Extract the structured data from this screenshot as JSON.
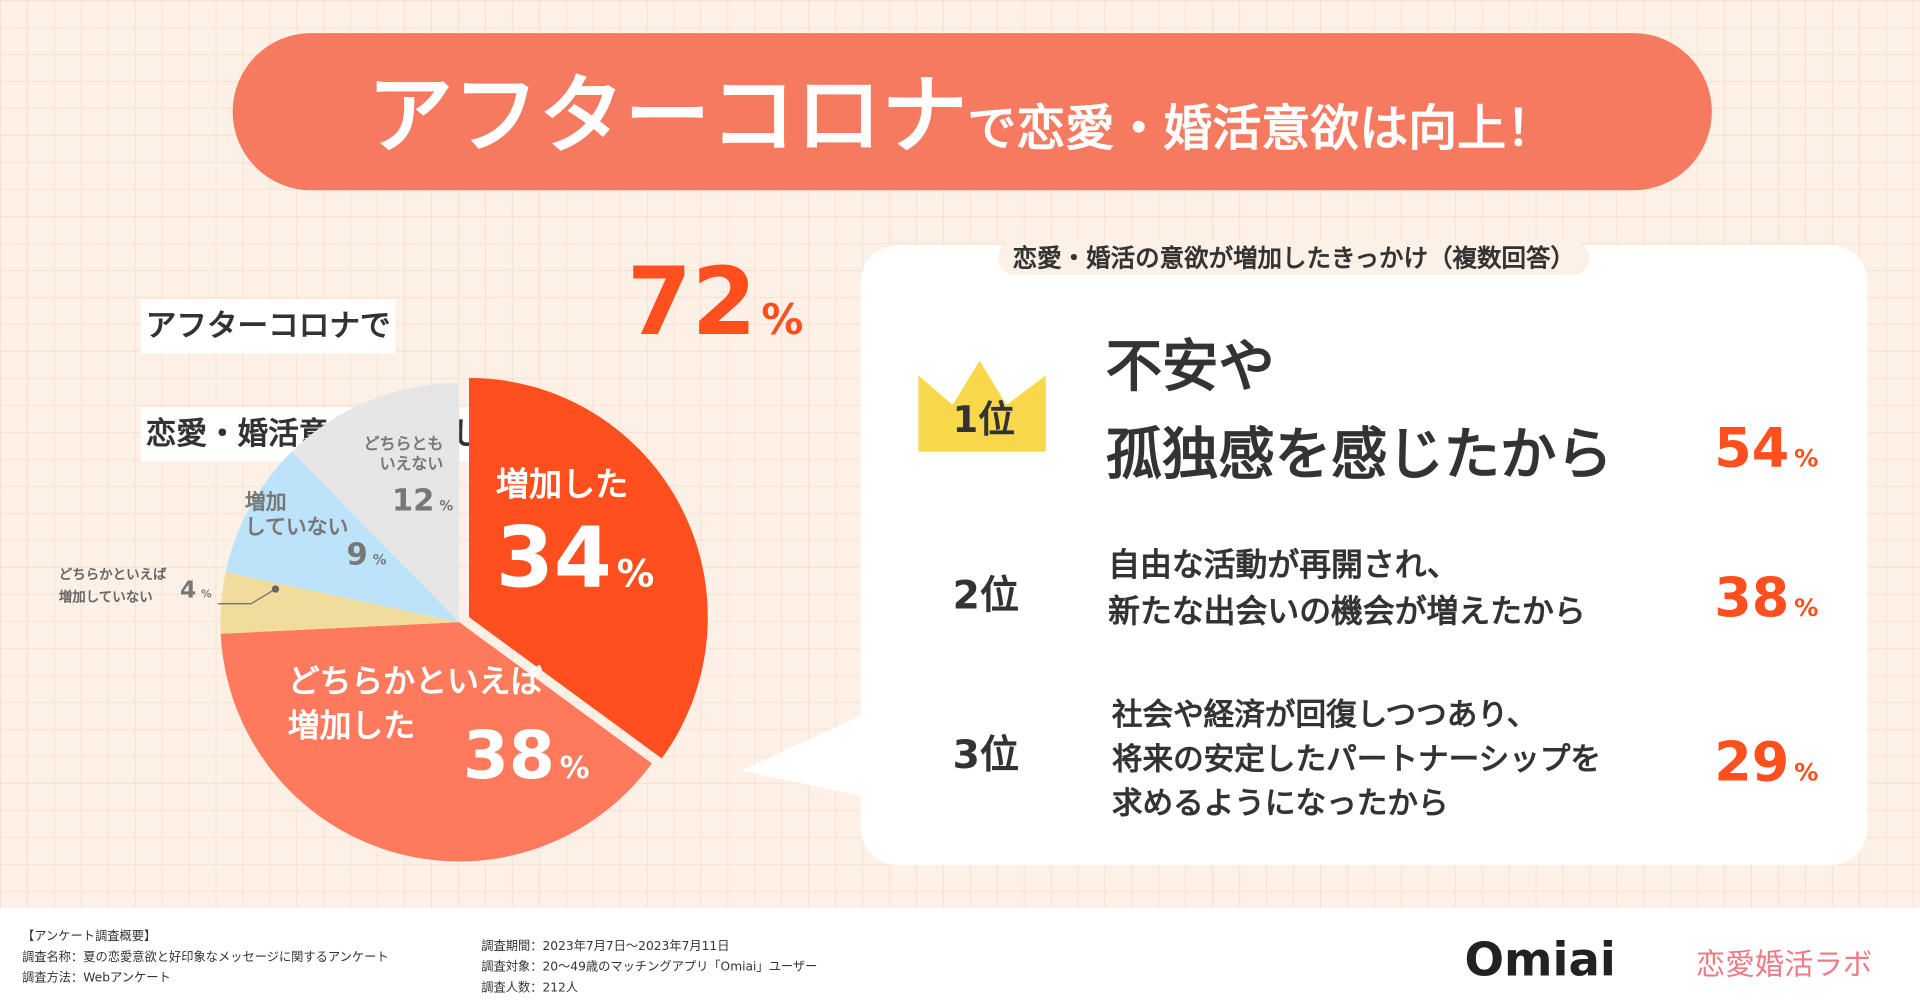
{
  "header": {
    "title_main": "アフターコロナ",
    "title_rest": "で恋愛・婚活意欲は向上！"
  },
  "summary": {
    "lines": [
      "アフターコロナで",
      "恋愛・婚活意欲が増加した人は"
    ],
    "value": 72,
    "unit": "%"
  },
  "chart_data": {
    "type": "pie",
    "categories": [
      "増加した",
      "どちらかといえば\n増加した",
      "どちらかといえば\n増加していない",
      "増加\nしていない",
      "どちらとも\nいえない"
    ],
    "values": [
      34,
      38,
      4,
      9,
      12
    ],
    "unit": "%",
    "colors": [
      "#ff4f1f",
      "#ff7a5c",
      "#f0dc9c",
      "#bde3fa",
      "#e6e6e6"
    ]
  },
  "ranking": {
    "title": "恋愛・婚活の意欲が増加したきっかけ（複数回答）",
    "unit": "%",
    "items": [
      {
        "rank": "1位",
        "reason": [
          "不安や",
          "孤独感を感じたから"
        ],
        "value": 54
      },
      {
        "rank": "2位",
        "reason": [
          "自由な活動が再開され、",
          "新たな出会いの機会が増えたから"
        ],
        "value": 38
      },
      {
        "rank": "3位",
        "reason": [
          "社会や経済が回復しつつあり、",
          "将来の安定したパートナーシップを",
          "求めるようになったから"
        ],
        "value": 29
      }
    ]
  },
  "footer": {
    "left": [
      "【アンケート調査概要】",
      "調査名称：夏の恋愛意欲と好印象なメッセージに関するアンケート",
      "調査方法：Webアンケート"
    ],
    "right": [
      "調査期間：2023年7月7日〜2023年7月11日",
      "調査対象：20〜49歳のマッチングアプリ「Omiai」ユーザー",
      "調査人数：212人"
    ],
    "logos": [
      "Omiai",
      "恋愛婚活ラボ"
    ]
  }
}
